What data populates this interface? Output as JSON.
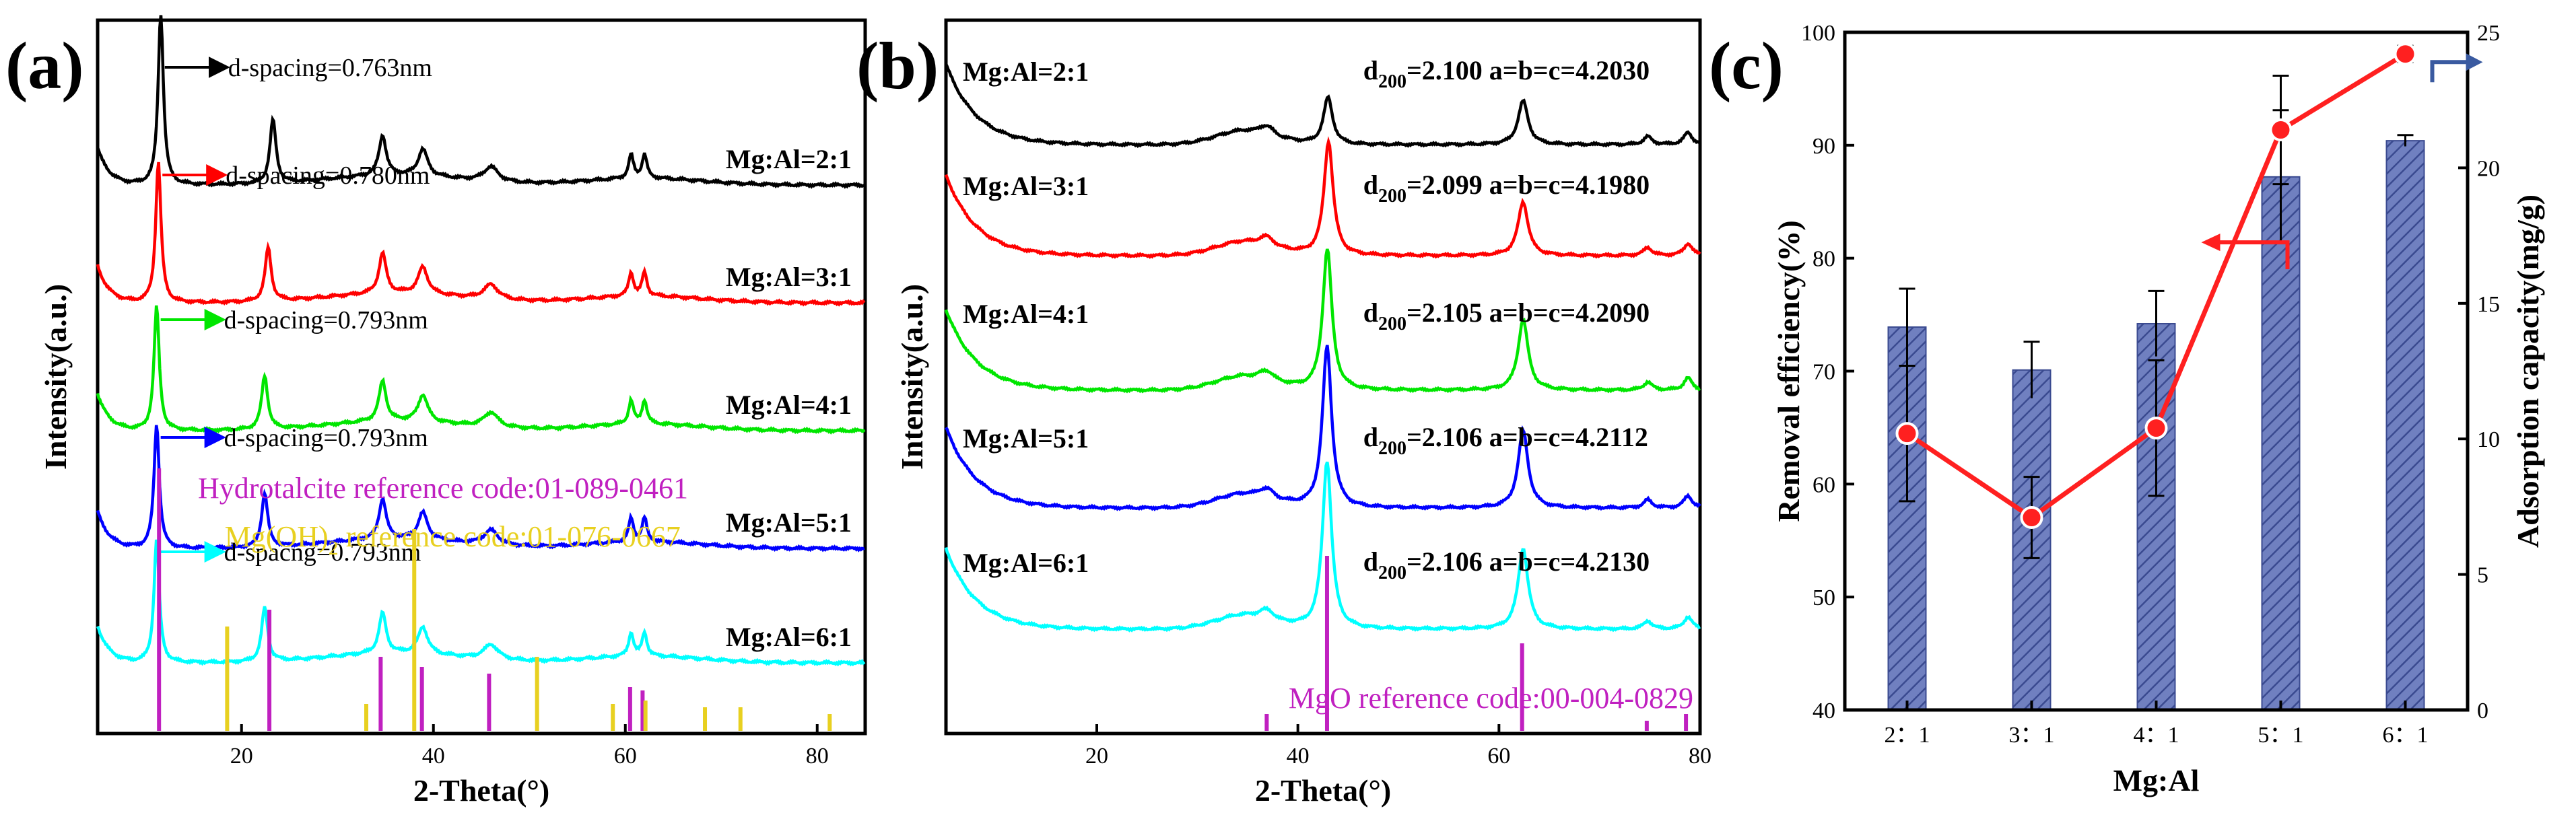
{
  "panels": {
    "a": {
      "label": "(a)"
    },
    "b": {
      "label": "(b)"
    },
    "c": {
      "label": "(c)"
    }
  },
  "chart_data": [
    {
      "type": "line",
      "panel": "(a)",
      "title": "",
      "xlabel": "2-Theta(°)",
      "ylabel": "Intensity(a.u.)",
      "xlim": [
        5,
        85
      ],
      "xticks": [
        20,
        40,
        60,
        80
      ],
      "peaks_2theta": [
        11.5,
        23.2,
        34.7,
        38.9,
        46.0,
        60.6,
        62.0
      ],
      "series": [
        {
          "name": "Mg:Al=2:1",
          "color": "#000000",
          "annotation": "d-spacing=0.763nm",
          "main_peak_2theta": 11.58
        },
        {
          "name": "Mg:Al=3:1",
          "color": "#ff0000",
          "annotation": "d-spacing=0.780nm",
          "main_peak_2theta": 11.33
        },
        {
          "name": "Mg:Al=4:1",
          "color": "#00e600",
          "annotation": "d-spacing=0.793nm",
          "main_peak_2theta": 11.15
        },
        {
          "name": "Mg:Al=5:1",
          "color": "#0000ff",
          "annotation": "d-spacing=0.793nm",
          "main_peak_2theta": 11.15
        },
        {
          "name": "Mg:Al=6:1",
          "color": "#00ffff",
          "annotation": "d-spacng=0.793nm",
          "main_peak_2theta": 11.15
        }
      ],
      "references": [
        {
          "label": "Hydrotalcite reference code:01-089-0461",
          "color": "#c020c0",
          "positions": [
            11.4,
            22.9,
            34.5,
            38.8,
            45.8,
            60.5,
            61.8
          ]
        },
        {
          "label_prefix": "Mg(OH)",
          "label_sub": "2",
          "label_suffix": " reference code:01-076-0667",
          "color": "#e8d020",
          "positions": [
            18.5,
            33.0,
            38.0,
            50.8,
            58.7,
            62.1,
            68.3,
            72.0,
            81.3
          ]
        }
      ]
    },
    {
      "type": "line",
      "panel": "(b)",
      "title": "",
      "xlabel": "2-Theta(°)",
      "ylabel": "Intensity(a.u.)",
      "xlim": [
        5,
        80
      ],
      "xticks": [
        20,
        40,
        60,
        80
      ],
      "series": [
        {
          "name": "Mg:Al=2:1",
          "color": "#000000",
          "d_label": "d",
          "d_sub": "200",
          "d_value": "=2.100 a=b=c=4.2030",
          "peak_2theta": 43.0
        },
        {
          "name": "Mg:Al=3:1",
          "color": "#ff0000",
          "d_label": "d",
          "d_sub": "200",
          "d_value": "=2.099 a=b=c=4.1980",
          "peak_2theta": 43.05
        },
        {
          "name": "Mg:Al=4:1",
          "color": "#00e600",
          "d_label": "d",
          "d_sub": "200",
          "d_value": "=2.105 a=b=c=4.2090",
          "peak_2theta": 42.93
        },
        {
          "name": "Mg:Al=5:1",
          "color": "#0000ff",
          "d_label": "d",
          "d_sub": "200",
          "d_value": "=2.106 a=b=c=4.2112",
          "peak_2theta": 42.9
        },
        {
          "name": "Mg:Al=6:1",
          "color": "#00ffff",
          "d_label": "d",
          "d_sub": "200",
          "d_value": "=2.106 a=b=c=4.2130",
          "peak_2theta": 42.9
        }
      ],
      "references": [
        {
          "label": "MgO reference code:00-004-0829",
          "color": "#c020c0",
          "positions": [
            36.9,
            42.9,
            62.3,
            74.7,
            78.6
          ]
        }
      ]
    },
    {
      "type": "bar",
      "panel": "(c)",
      "title": "",
      "xlabel": "Mg:Al",
      "ylabel": "Removal efficiency(%)",
      "y2label": "Adsorption capacity(mg/g)",
      "categories": [
        "2：1",
        "3：1",
        "4：1",
        "5：1",
        "6：1"
      ],
      "ylim": [
        40,
        100
      ],
      "yticks": [
        40,
        50,
        60,
        70,
        80,
        90,
        100
      ],
      "y2lim": [
        0,
        25
      ],
      "y2ticks": [
        0,
        5,
        10,
        15,
        20,
        25
      ],
      "bar_color": "#7080c0",
      "line_color": "#ff2020",
      "series": [
        {
          "name": "Removal efficiency",
          "type": "bar",
          "axis": "left",
          "values": [
            73.9,
            70.1,
            74.2,
            87.2,
            90.4
          ],
          "errors": [
            3.4,
            2.5,
            2.9,
            5.9,
            0.5
          ]
        },
        {
          "name": "Adsorption capacity",
          "type": "line",
          "axis": "right",
          "values": [
            10.2,
            7.1,
            10.4,
            21.4,
            24.2
          ],
          "errors": [
            2.5,
            1.5,
            2.5,
            2.0,
            0.3
          ]
        }
      ]
    }
  ]
}
